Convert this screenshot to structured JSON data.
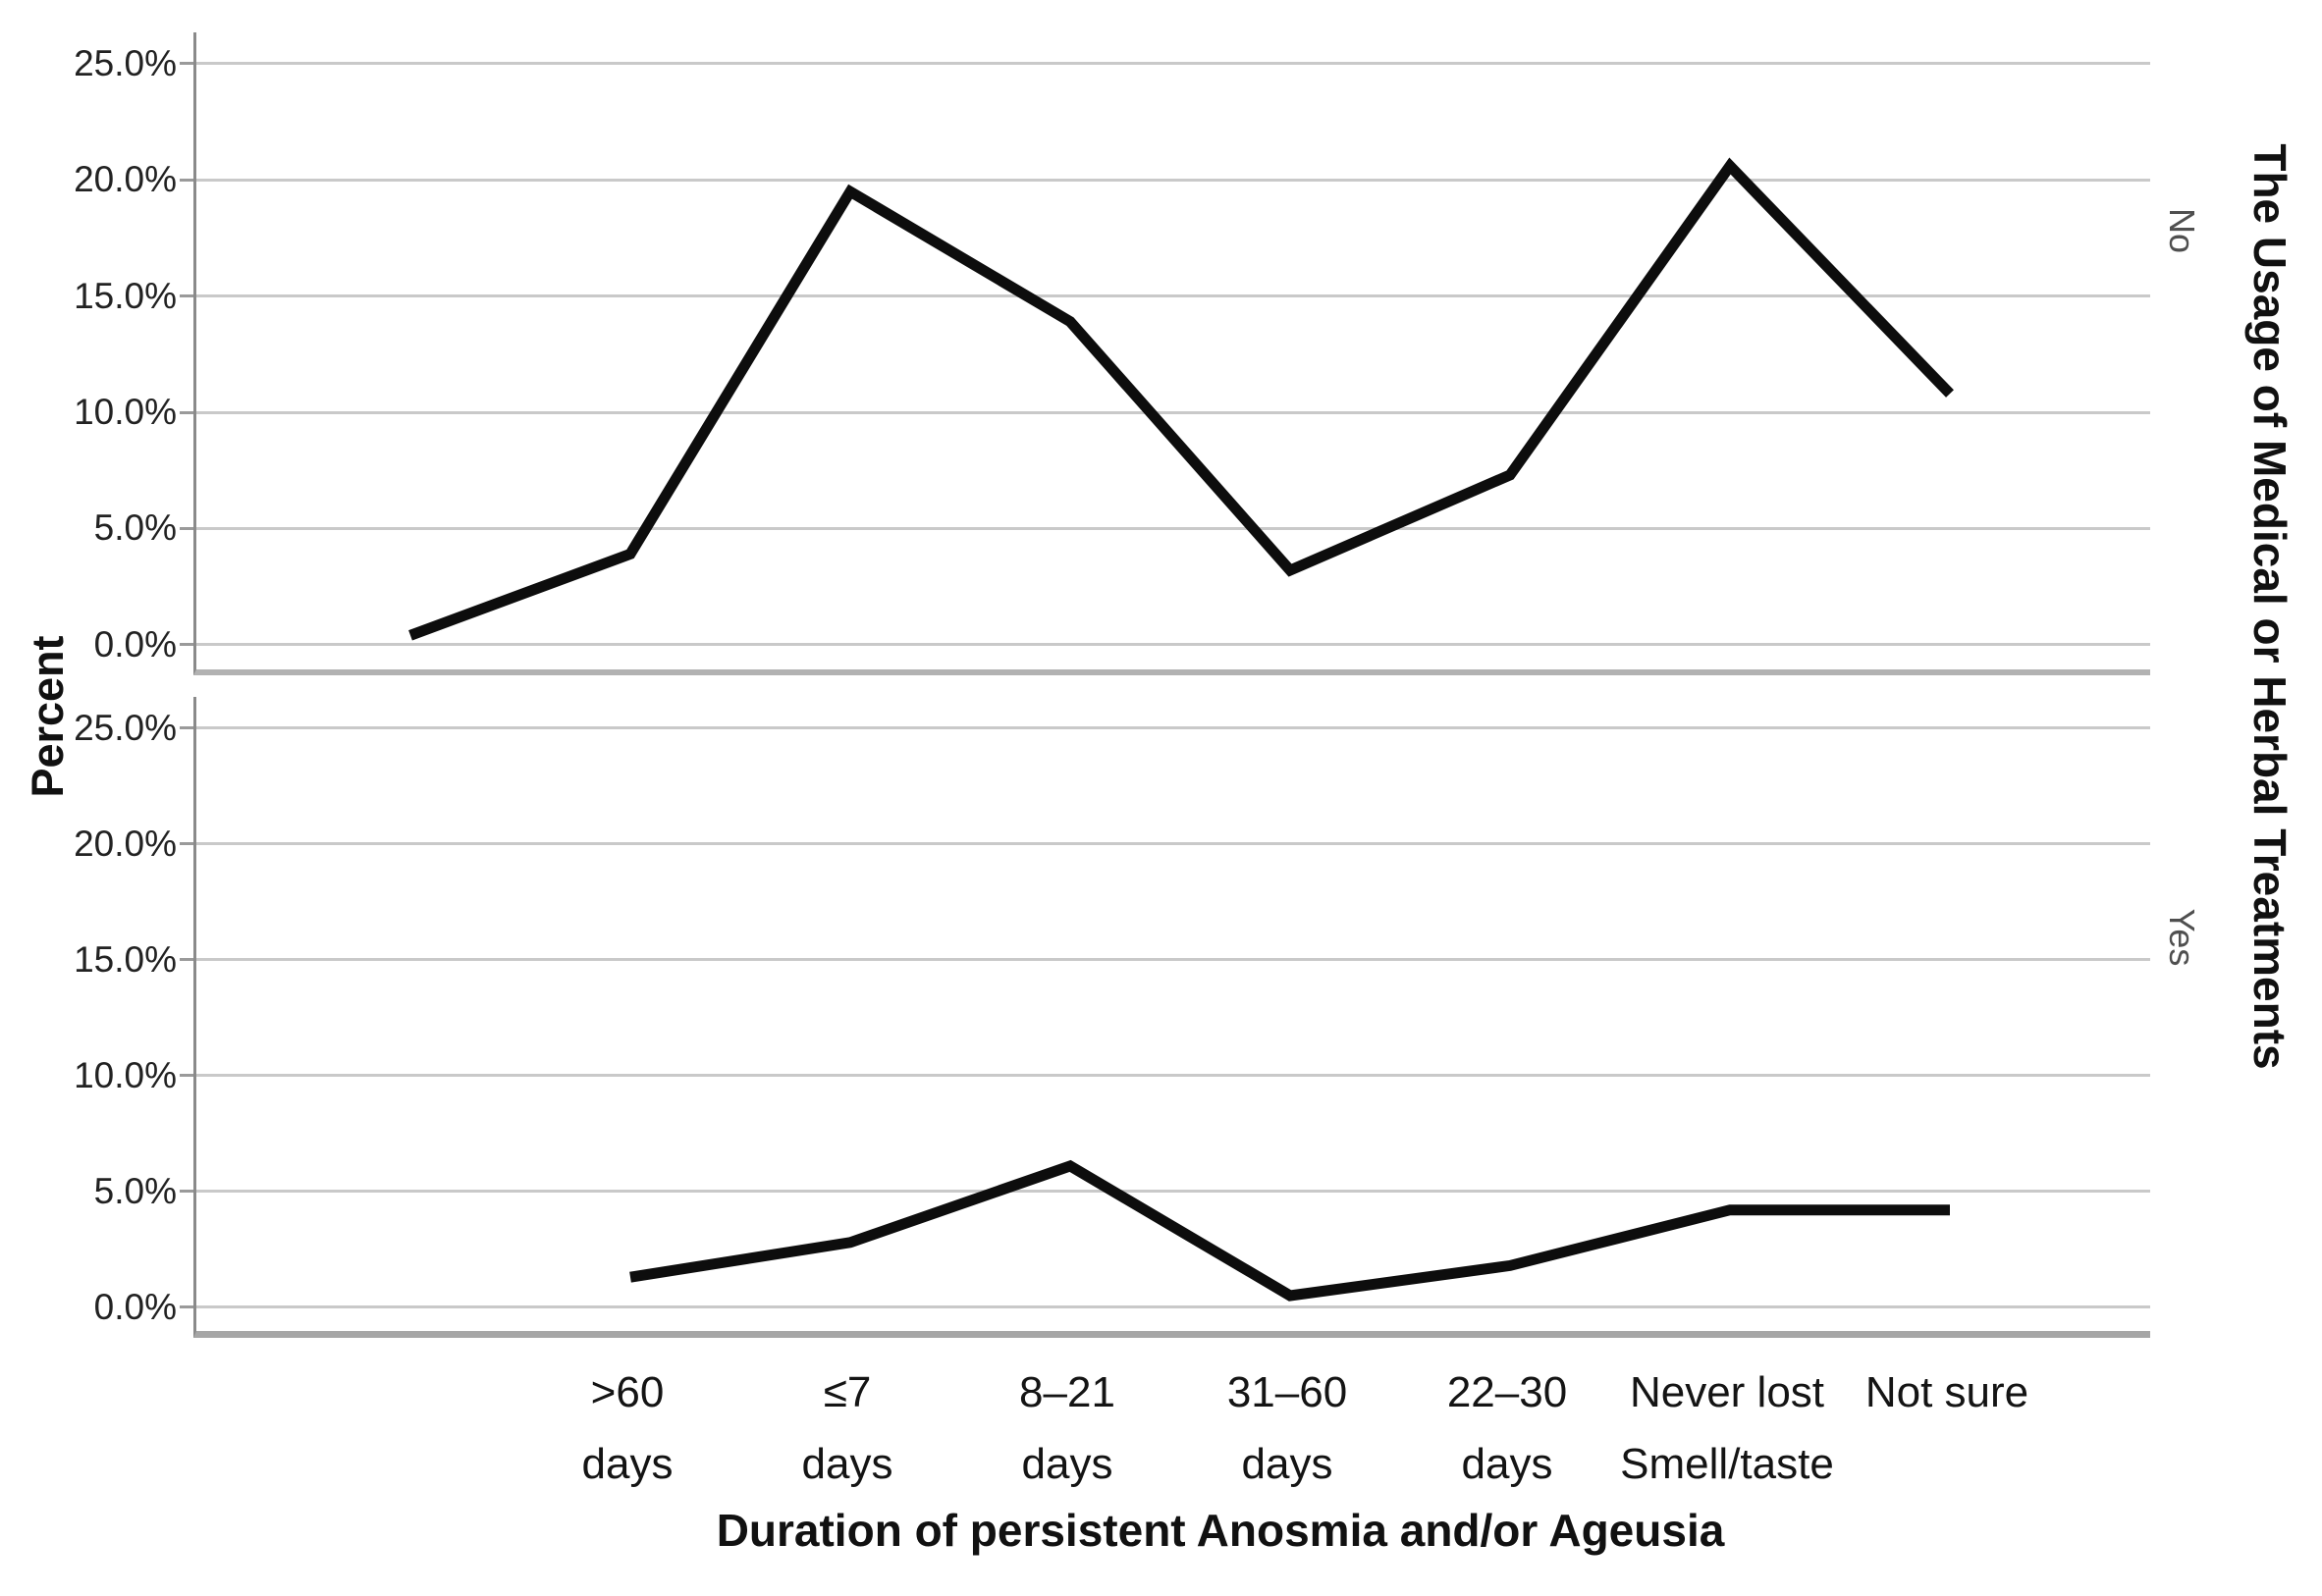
{
  "chart_data": {
    "type": "line",
    "title_right": "The Usage of Medical or Herbal Treatments",
    "xlabel": "Duration of persistent Anosmia and/or Ageusia",
    "ylabel": "Percent",
    "categories": [
      "",
      ">60 days",
      "≤7 days",
      "8–21 days",
      "31–60 days",
      "22–30 days",
      "Never lost Smell/taste",
      "Not sure"
    ],
    "category_lines": [
      [
        "",
        ""
      ],
      [
        ">60",
        "days"
      ],
      [
        "≤7",
        "days"
      ],
      [
        "8–21",
        "days"
      ],
      [
        "31–60",
        "days"
      ],
      [
        "22–30",
        "days"
      ],
      [
        "Never lost",
        "Smell/taste"
      ],
      [
        "Not sure",
        ""
      ]
    ],
    "panels": [
      {
        "label": "No",
        "series": {
          "name": "No",
          "values": [
            0.4,
            3.9,
            19.5,
            13.9,
            3.2,
            7.3,
            20.6,
            10.8
          ]
        }
      },
      {
        "label": "Yes",
        "series": {
          "name": "Yes",
          "values": [
            null,
            1.3,
            2.8,
            6.1,
            0.5,
            1.8,
            4.2,
            4.2
          ]
        }
      }
    ],
    "y_ticks": [
      {
        "label": "25.0%",
        "value": 25
      },
      {
        "label": "20.0%",
        "value": 20
      },
      {
        "label": "15.0%",
        "value": 15
      },
      {
        "label": "10.0%",
        "value": 10
      },
      {
        "label": "5.0%",
        "value": 5
      },
      {
        "label": "0.0%",
        "value": 0
      }
    ],
    "ylim": [
      -1.32,
      26.35
    ],
    "grid": true,
    "legend": "none",
    "line_color": "#0d0d0d",
    "grid_color": "#c9c9c9"
  }
}
